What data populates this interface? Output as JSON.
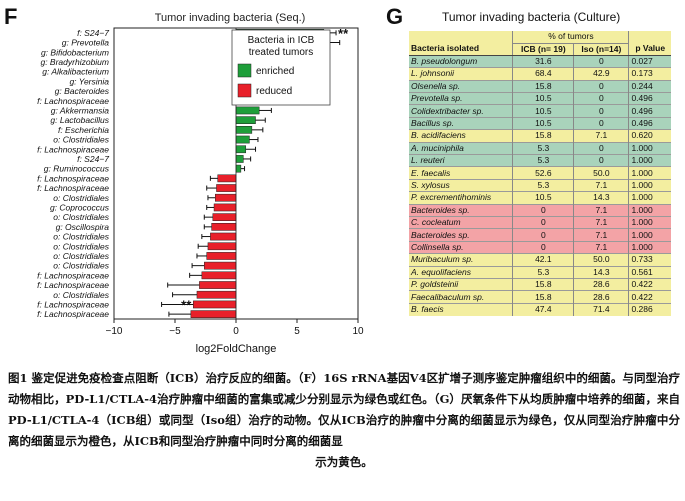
{
  "colors": {
    "enriched": "#1e9e3a",
    "reduced": "#e8202a",
    "green_row": "#a9d3bb",
    "red_row": "#f3a3a6",
    "yellow_row": "#f3eea0"
  },
  "panel_f": {
    "letter": "F",
    "chart_data": {
      "type": "bar",
      "orientation": "horizontal",
      "title": "Tumor invading bacteria (Seq.)",
      "xlabel": "log2FoldChange",
      "ylabel": "",
      "xlim": [
        -10,
        10
      ],
      "xticks": [
        -10,
        -5,
        0,
        5,
        10
      ],
      "grid": false,
      "legend": {
        "title": "Bacteria in ICB treated tumors",
        "position": "top-left",
        "entries": [
          {
            "name": "enriched",
            "color": "#1e9e3a"
          },
          {
            "name": "reduced",
            "color": "#e8202a"
          }
        ]
      },
      "categories": [
        "f: S24−7",
        "g: Prevotella",
        "g: Bifidobacterium",
        "g: Bradyrhizobium",
        "g: Alkalibacterium",
        "g: Yersinia",
        "g: Bacteroides",
        "f: Lachnospiraceae",
        "g: Akkermansia",
        "g: Lactobacillus",
        "f: Escherichia",
        "o: Clostridiales",
        "f: Lachnospiraceae",
        "f: S24−7",
        "g: Ruminococcus",
        "f: Lachnospiraceae",
        "f: Lachnospiraceae",
        "o: Clostridiales",
        "g: Coprococcus",
        "o: Clostridiales",
        "g: Oscillospira",
        "o: Clostridiales",
        "o: Clostridiales",
        "o: Clostridiales",
        "o: Clostridiales",
        "f: Lachnospiraceae",
        "f: Lachnospiraceae",
        "o: Clostridiales",
        "f: Lachnospiraceae",
        "f: Lachnospiraceae"
      ],
      "values": [
        7.2,
        5.5,
        4.0,
        3.7,
        3.4,
        3.0,
        2.6,
        2.4,
        1.9,
        1.6,
        1.3,
        1.1,
        0.8,
        0.6,
        0.4,
        -1.5,
        -1.6,
        -1.7,
        -1.8,
        -1.9,
        -2.0,
        -2.1,
        -2.3,
        -2.4,
        -2.6,
        -2.8,
        -3.0,
        -3.2,
        -3.5,
        -3.7
      ],
      "errors": [
        1.0,
        3.0,
        1.5,
        2.5,
        1.5,
        1.2,
        2.0,
        3.0,
        1.0,
        0.8,
        0.9,
        0.7,
        0.8,
        0.6,
        0.3,
        0.6,
        0.8,
        0.6,
        0.6,
        0.7,
        0.6,
        0.7,
        0.8,
        0.8,
        1.0,
        1.0,
        2.6,
        2.0,
        2.6,
        1.8
      ],
      "annotations": [
        "**",
        "",
        "*",
        "**",
        "",
        "",
        "",
        "",
        "",
        "",
        "",
        "",
        "",
        "",
        "",
        "",
        "",
        "",
        "",
        "",
        "",
        "",
        "",
        "",
        "",
        "",
        "",
        "",
        "**",
        ""
      ]
    }
  },
  "panel_g": {
    "letter": "G",
    "title": "Tumor invading bacteria (Culture)",
    "pct_header": "% of tumors",
    "headers": [
      "Bacteria isolated",
      "ICB (n= 19)",
      "Iso (n=14)",
      "p Value"
    ],
    "rows": [
      {
        "name": "B. pseudolongum",
        "icb": "31.6",
        "iso": "0",
        "p": "0.027",
        "group": "green"
      },
      {
        "name": "L. johnsonii",
        "icb": "68.4",
        "iso": "42.9",
        "p": "0.173",
        "group": "yellow"
      },
      {
        "name": "Olsenella sp.",
        "icb": "15.8",
        "iso": "0",
        "p": "0.244",
        "group": "green"
      },
      {
        "name": "Prevotella sp.",
        "icb": "10.5",
        "iso": "0",
        "p": "0.496",
        "group": "green"
      },
      {
        "name": "Colidextribacter sp.",
        "icb": "10.5",
        "iso": "0",
        "p": "0.496",
        "group": "green"
      },
      {
        "name": "Bacillus sp.",
        "icb": "10.5",
        "iso": "0",
        "p": "0.496",
        "group": "green"
      },
      {
        "name": "B. acidifaciens",
        "icb": "15.8",
        "iso": "7.1",
        "p": "0.620",
        "group": "yellow"
      },
      {
        "name": "A. muciniphila",
        "icb": "5.3",
        "iso": "0",
        "p": "1.000",
        "group": "green"
      },
      {
        "name": "L. reuteri",
        "icb": "5.3",
        "iso": "0",
        "p": "1.000",
        "group": "green"
      },
      {
        "name": "E. faecalis",
        "icb": "52.6",
        "iso": "50.0",
        "p": "1.000",
        "group": "yellow"
      },
      {
        "name": "S. xylosus",
        "icb": "5.3",
        "iso": "7.1",
        "p": "1.000",
        "group": "yellow"
      },
      {
        "name": "P. excrementihominis",
        "icb": "10.5",
        "iso": "14.3",
        "p": "1.000",
        "group": "yellow"
      },
      {
        "name": "Bacteroides sp.",
        "icb": "0",
        "iso": "7.1",
        "p": "1.000",
        "group": "red"
      },
      {
        "name": "C. cocleatum",
        "icb": "0",
        "iso": "7.1",
        "p": "1.000",
        "group": "red"
      },
      {
        "name": "Bacteroides sp.",
        "icb": "0",
        "iso": "7.1",
        "p": "1.000",
        "group": "red"
      },
      {
        "name": "Collinsella sp.",
        "icb": "0",
        "iso": "7.1",
        "p": "1.000",
        "group": "red"
      },
      {
        "name": "Muribaculum sp.",
        "icb": "42.1",
        "iso": "50.0",
        "p": "0.733",
        "group": "yellow"
      },
      {
        "name": "A. equolifaciens",
        "icb": "5.3",
        "iso": "14.3",
        "p": "0.561",
        "group": "yellow"
      },
      {
        "name": "P. goldsteinii",
        "icb": "15.8",
        "iso": "28.6",
        "p": "0.422",
        "group": "yellow"
      },
      {
        "name": "Faecalibaculum sp.",
        "icb": "15.8",
        "iso": "28.6",
        "p": "0.422",
        "group": "yellow"
      },
      {
        "name": "B. faecis",
        "icb": "47.4",
        "iso": "71.4",
        "p": "0.286",
        "group": "yellow"
      }
    ]
  },
  "caption": {
    "text": "图1 鉴定促进免疫检查点阻断（ICB）治疗反应的细菌。（F）16S rRNA基因V4区扩增子测序鉴定肿瘤组织中的细菌。与同型治疗动物相比，PD-L1/CTLA-4治疗肿瘤中细菌的富集或减少分别显示为绿色或红色。（G）厌氧条件下从均质肿瘤中培养的细菌，来自PD-L1/CTLA-4（ICB组）或同型（Iso组）治疗的动物。仅从ICB治疗的肿瘤中分离的细菌显示为绿色，仅从同型治疗肿瘤中分离的细菌显示为橙色，从ICB和同型治疗肿瘤中同时分离的细菌显",
    "last_line": "示为黄色。"
  }
}
